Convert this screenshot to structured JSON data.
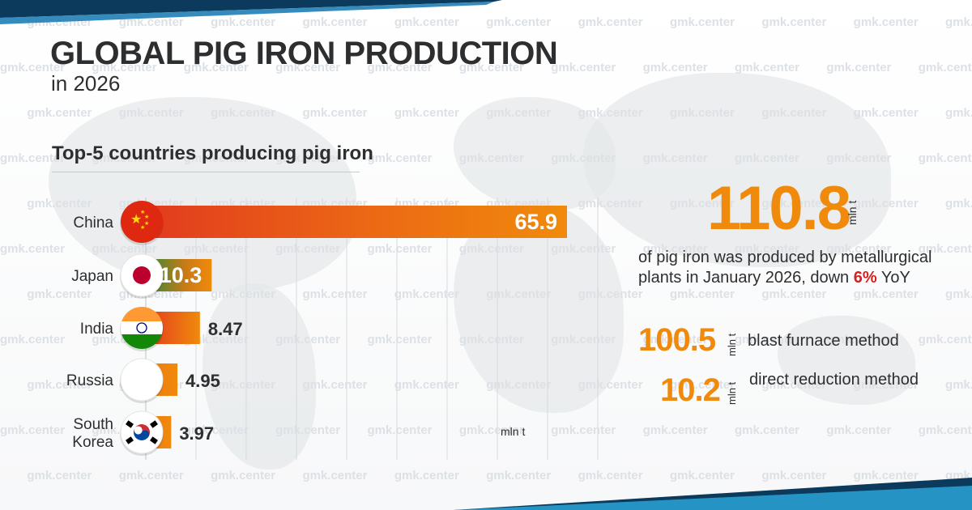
{
  "header": {
    "title": "GLOBAL PIG IRON PRODUCTION",
    "subtitle": "in 2026"
  },
  "watermark": "gmk.center",
  "chart_data": {
    "type": "bar",
    "orientation": "horizontal",
    "title": "Top-5 countries producing pig iron",
    "categories": [
      "China",
      "Japan",
      "India",
      "Russia",
      "South Korea"
    ],
    "category_lines": [
      [
        "China"
      ],
      [
        "Japan"
      ],
      [
        "India"
      ],
      [
        "Russia"
      ],
      [
        "South",
        "Korea"
      ]
    ],
    "values": [
      65.9,
      10.3,
      8.47,
      4.95,
      3.97
    ],
    "value_labels": [
      "65.9",
      "10.3",
      "8.47",
      "4.95",
      "3.97"
    ],
    "unit": "mln t",
    "flags": [
      "china-flag-icon",
      "japan-flag-icon",
      "india-flag-icon",
      "russia-flag-icon",
      "south-korea-flag-icon"
    ],
    "grid": true,
    "colors": {
      "bar_main": "#f08a0c",
      "bar_china_start": "#e23b1f",
      "bar_japan_start": "#2f8a3a"
    }
  },
  "stats": {
    "total_value": "110.8",
    "total_unit": "mln t",
    "description_prefix": "of pig iron was produced by metallurgical plants in January 2026, down ",
    "change_pct": "6%",
    "description_suffix": " YoY",
    "methods": [
      {
        "value": "100.5",
        "unit": "mln t",
        "label": "blast furnace method"
      },
      {
        "value": "10.2",
        "unit": "mln t",
        "label": "direct reduction method"
      }
    ]
  },
  "colors": {
    "accent": "#f08a0c",
    "text": "#2d2e30",
    "highlight": "#d41f1f",
    "band_dark": "#0b3a5c",
    "band_light": "#2aa5d6"
  }
}
